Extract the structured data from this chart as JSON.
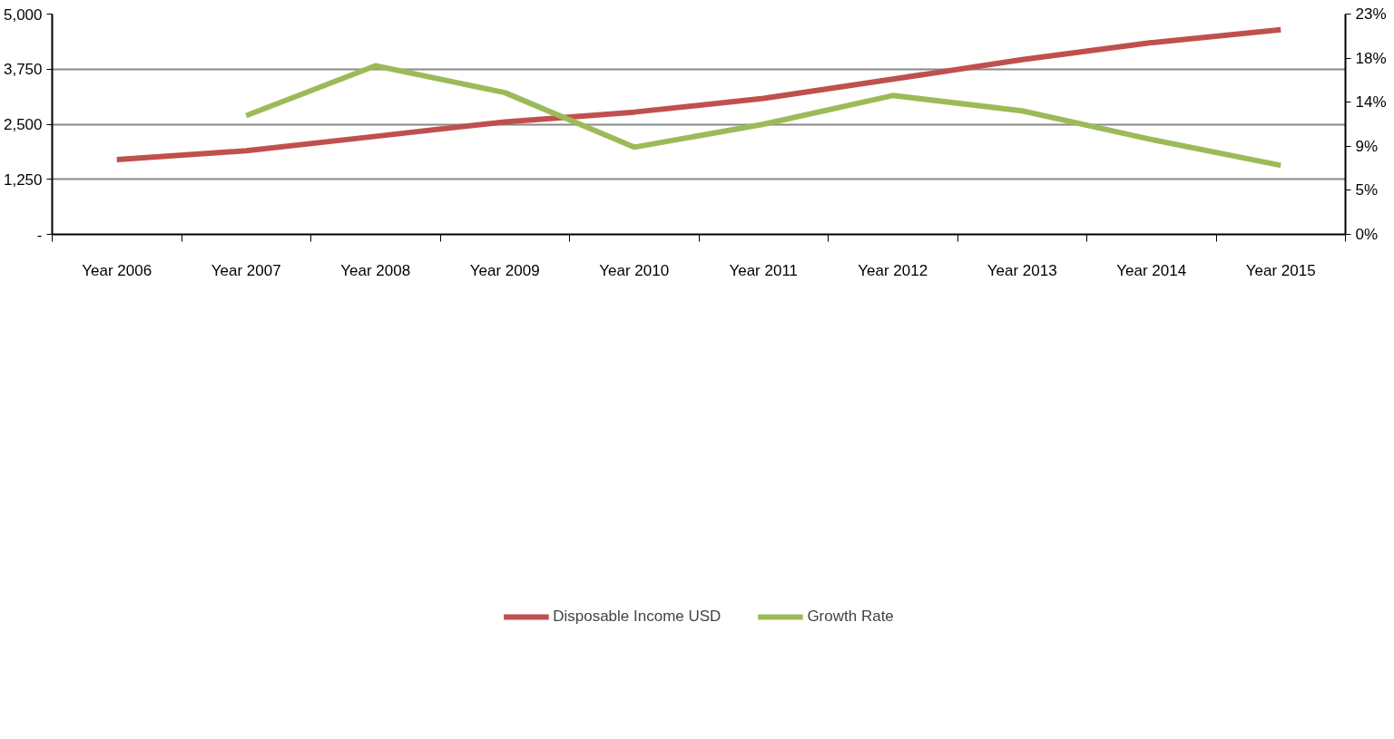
{
  "chart_data": {
    "type": "line",
    "categories": [
      "Year 2006",
      "Year 2007",
      "Year 2008",
      "Year 2009",
      "Year 2010",
      "Year 2011",
      "Year 2012",
      "Year 2013",
      "Year 2014",
      "Year 2015"
    ],
    "series": [
      {
        "name": "Disposable Income USD",
        "color": "#c0504d",
        "values": [
          1699,
          1897,
          2225,
          2553,
          2775,
          3087,
          3522,
          3966,
          4351,
          4647
        ]
      },
      {
        "name": "Growth Rate",
        "color": "#9bbb59",
        "axis": "y2",
        "values": [
          null,
          12.4,
          17.6,
          14.8,
          9.1,
          11.5,
          14.5,
          12.9,
          9.9,
          7.2
        ]
      }
    ],
    "ylim": [
      0,
      5000
    ],
    "yticks": [
      {
        "value": 0,
        "label": "-"
      },
      {
        "value": 1250,
        "label": "1,250"
      },
      {
        "value": 2500,
        "label": "2,500"
      },
      {
        "value": 3750,
        "label": "3,750"
      },
      {
        "value": 5000,
        "label": "5,000"
      }
    ],
    "y2lim": [
      0,
      23
    ],
    "y2ticks": [
      {
        "value": 0,
        "label": "0%"
      },
      {
        "value": 4.6,
        "label": "5%"
      },
      {
        "value": 9.2,
        "label": "9%"
      },
      {
        "value": 13.8,
        "label": "14%"
      },
      {
        "value": 18.4,
        "label": "18%"
      },
      {
        "value": 23,
        "label": "23%"
      }
    ],
    "grid": "y",
    "legend": "bottom",
    "marker": "none",
    "line_style": "solid"
  }
}
